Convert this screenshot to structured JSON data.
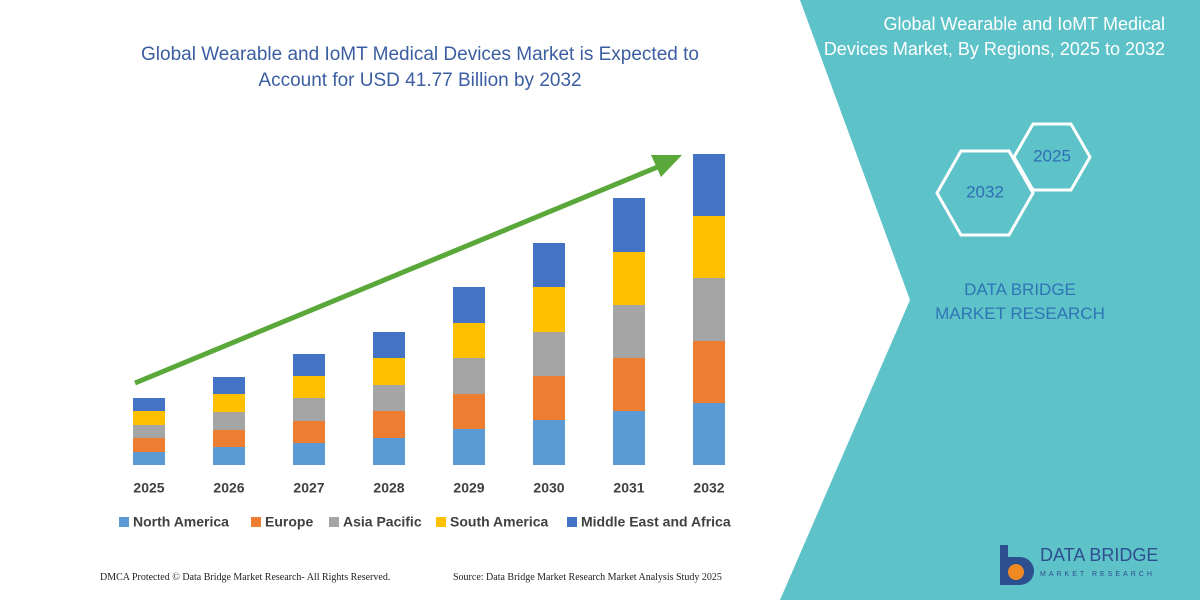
{
  "chart_data": {
    "type": "stacked_bar",
    "title": "Global Wearable and IoMT Medical Devices Market is Expected to Account for USD 41.77 Billion by 2032",
    "categories": [
      "2025",
      "2026",
      "2027",
      "2028",
      "2029",
      "2030",
      "2031",
      "2032"
    ],
    "series": [
      {
        "name": "North America",
        "color": "#5b9bd5",
        "values": [
          13,
          18,
          22,
          27,
          36,
          45,
          54,
          62
        ]
      },
      {
        "name": "Europe",
        "color": "#ed7d31",
        "values": [
          14,
          17,
          22,
          27,
          35,
          44,
          53,
          62
        ]
      },
      {
        "name": "Asia Pacific",
        "color": "#a5a5a5",
        "values": [
          13,
          18,
          23,
          26,
          36,
          44,
          53,
          63
        ]
      },
      {
        "name": "South America",
        "color": "#ffc000",
        "values": [
          14,
          18,
          22,
          27,
          35,
          45,
          53,
          62
        ]
      },
      {
        "name": "Middle East and Africa",
        "color": "#4472c4",
        "values": [
          13,
          17,
          22,
          26,
          36,
          44,
          54,
          62
        ]
      }
    ],
    "ylim": [
      0,
      311
    ]
  },
  "panel": {
    "title": "Global Wearable and IoMT Medical Devices Market, By Regions, 2025 to 2032",
    "hex_labels": [
      "2025",
      "2032"
    ],
    "brand": "DATA BRIDGE MARKET RESEARCH"
  },
  "footer": {
    "left": "DMCA Protected © Data Bridge Market Research- All Rights Reserved.",
    "right": "Source: Data Bridge Market Research Market Analysis Study 2025"
  },
  "logo": {
    "name": "DATA BRIDGE",
    "tagline": "MARKET RESEARCH"
  }
}
